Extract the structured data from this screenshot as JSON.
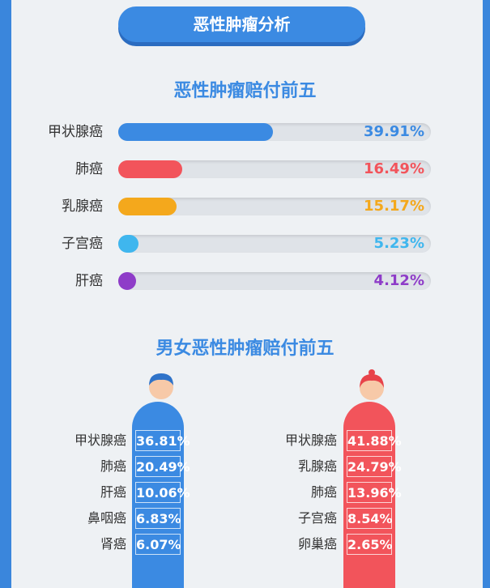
{
  "header": {
    "title": "恶性肿瘤分析"
  },
  "chart_data": [
    {
      "type": "bar",
      "title": "恶性肿瘤赔付前五",
      "categories": [
        "甲状腺癌",
        "肺癌",
        "乳腺癌",
        "子宫癌",
        "肝癌"
      ],
      "values": [
        39.91,
        16.49,
        15.17,
        5.23,
        4.12
      ],
      "labels": [
        "39.91%",
        "16.49%",
        "15.17%",
        "5.23%",
        "4.12%"
      ],
      "colors": [
        "#3b8ae2",
        "#f2545b",
        "#f4a81c",
        "#3fb6ee",
        "#8e3cc8"
      ],
      "ylim": [
        0,
        100
      ]
    },
    {
      "type": "table",
      "title": "男女恶性肿瘤赔付前五",
      "male": {
        "categories": [
          "甲状腺癌",
          "肺癌",
          "肝癌",
          "鼻咽癌",
          "肾癌"
        ],
        "values": [
          36.81,
          20.49,
          10.06,
          6.83,
          6.07
        ],
        "labels": [
          "36.81%",
          "20.49%",
          "10.06%",
          "6.83%",
          "6.07%"
        ],
        "color": "#3b8ae2"
      },
      "female": {
        "categories": [
          "甲状腺癌",
          "乳腺癌",
          "肺癌",
          "子宫癌",
          "卵巢癌"
        ],
        "values": [
          41.88,
          24.79,
          13.96,
          8.54,
          2.65
        ],
        "labels": [
          "41.88%",
          "24.79%",
          "13.96%",
          "8.54%",
          "2.65%"
        ],
        "color": "#f2545b"
      }
    }
  ]
}
